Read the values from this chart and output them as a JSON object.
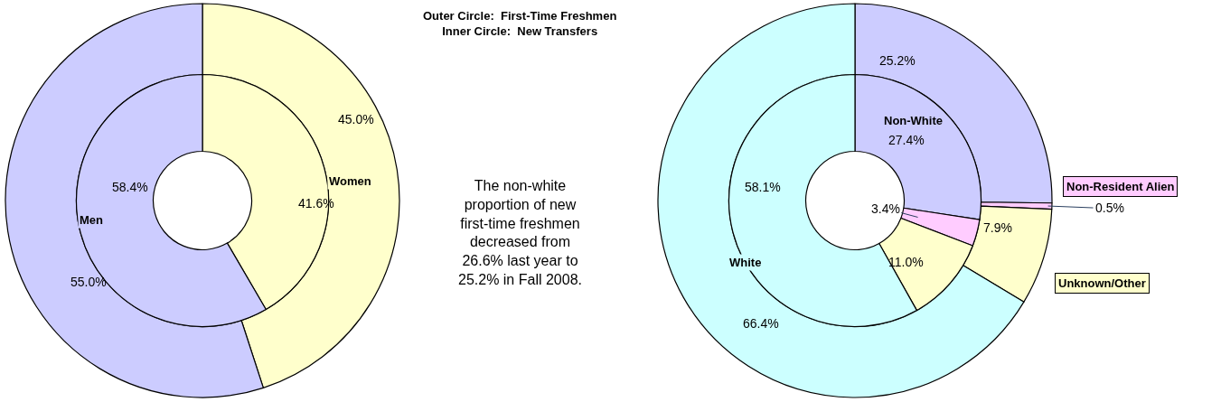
{
  "chart_data": [
    {
      "type": "donut",
      "title": "Outer Circle:  First-Time Freshmen\nInner Circle:  New Transfers",
      "annotations": [
        "The non-white\nproportion of new\nfirst-time freshmen\ndecreased from\n26.6% last year to\n25.2% in Fall 2008."
      ],
      "categories": [
        "Women",
        "Men"
      ],
      "colors": [
        "#ffffcc",
        "#ccccff"
      ],
      "series": [
        {
          "values": [
            45.0,
            55.0
          ],
          "value_labels": [
            "45.0%",
            "55.0%"
          ]
        },
        {
          "values": [
            41.6,
            58.4
          ],
          "value_labels": [
            "41.6%",
            "58.4%"
          ]
        }
      ]
    },
    {
      "type": "donut",
      "categories": [
        "Non-White",
        "Non-Resident Alien",
        "Unknown/Other",
        "White"
      ],
      "colors": [
        "#ccccff",
        "#ffccff",
        "#ffffcc",
        "#ccffff"
      ],
      "series": [
        {
          "values": [
            25.2,
            0.5,
            7.9,
            66.4
          ],
          "value_labels": [
            "25.2%",
            "0.5%",
            "7.9%",
            "66.4%"
          ]
        },
        {
          "values": [
            27.4,
            3.4,
            11.0,
            58.1
          ],
          "value_labels": [
            "27.4%",
            "3.4%",
            "11.0%",
            "58.1%"
          ]
        }
      ]
    }
  ]
}
